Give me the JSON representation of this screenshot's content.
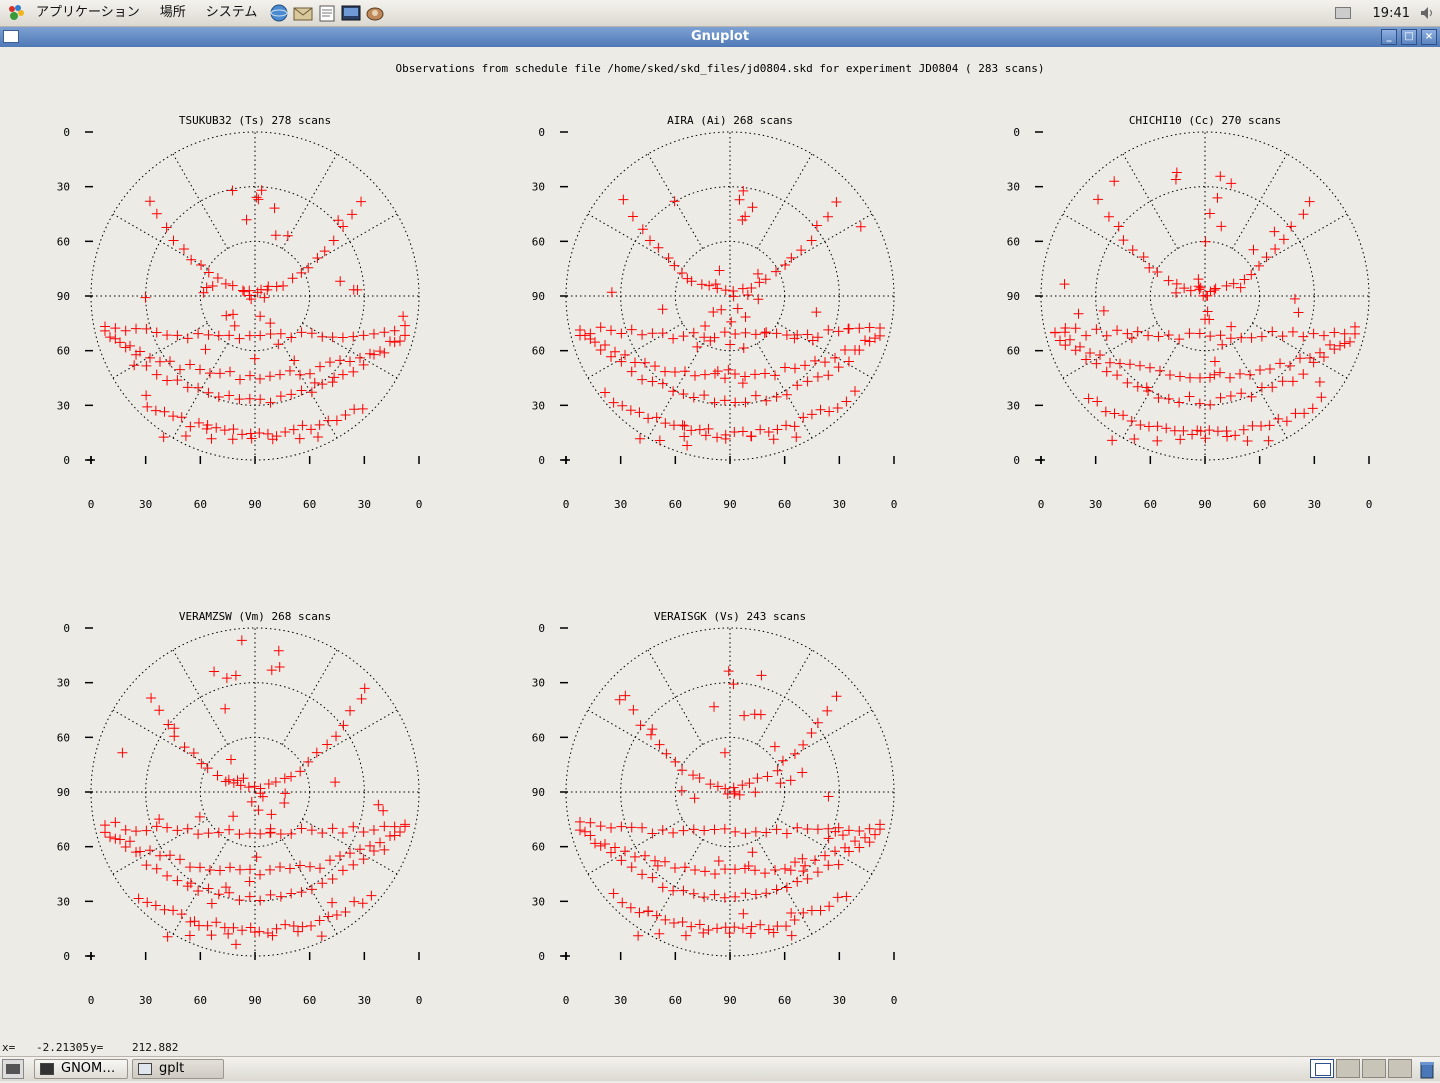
{
  "top_panel": {
    "menus": [
      "アプリケーション",
      "場所",
      "システム"
    ],
    "clock": "19:41"
  },
  "window": {
    "title": "Gnuplot",
    "minimize_symbol": "_",
    "maximize_symbol": "□",
    "close_symbol": "×"
  },
  "plot": {
    "main_title": "Observations from schedule file /home/sked/skd_files/jd0804.skd for experiment JD0804   ( 283 scans)",
    "y_ticks": [
      "0",
      "30",
      "60",
      "90",
      "60",
      "30",
      "0"
    ],
    "x_ticks": [
      "0",
      "30",
      "60",
      "90",
      "60",
      "30",
      "0"
    ],
    "color": "#ff0000"
  },
  "stations": [
    {
      "title": "TSUKUB32 (Ts)  278 scans"
    },
    {
      "title": "AIRA (Ai)  268 scans"
    },
    {
      "title": "CHICHI10 (Cc)  270 scans"
    },
    {
      "title": "VERAMZSW (Vm)  268 scans"
    },
    {
      "title": "VERAISGK (Vs)  243 scans"
    }
  ],
  "status": {
    "x_label": "x=",
    "x_value": "-2.21305",
    "y_label": "y=",
    "y_value": "212.882"
  },
  "taskbar": {
    "tasks": [
      {
        "label": "GNOM…"
      },
      {
        "label": "gplt"
      }
    ]
  },
  "icons": {
    "panel": [
      "gnome-foot-icon",
      "browser-icon",
      "mail-icon",
      "editor-icon",
      "terminal-icon",
      "network-icon"
    ],
    "tray": [
      "battery-icon",
      "speaker-icon"
    ]
  }
}
